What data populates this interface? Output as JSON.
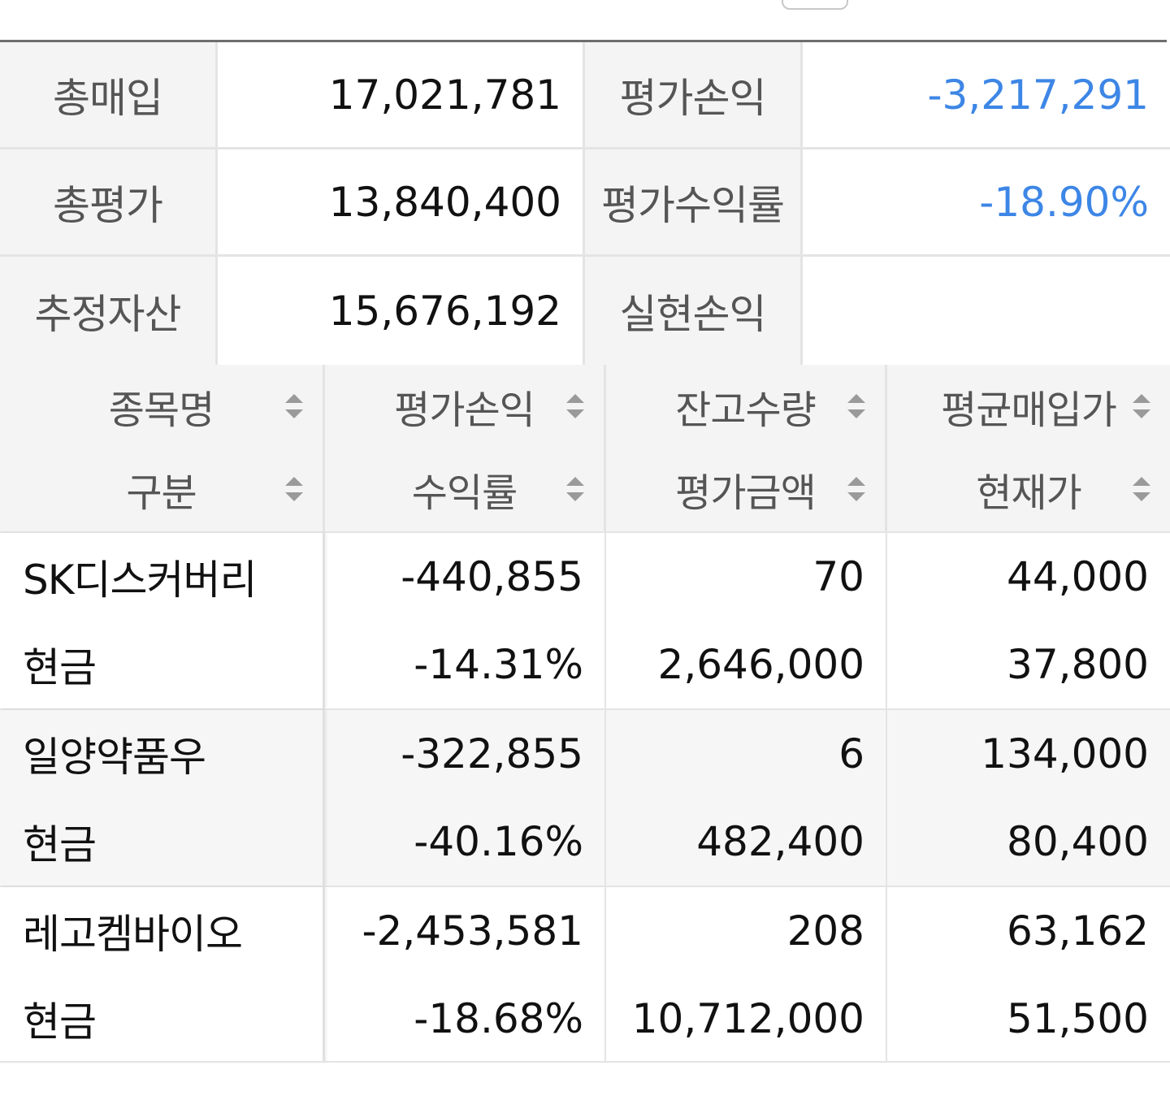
{
  "summary": {
    "rows": [
      {
        "label1": "총매입",
        "value1": "17,021,781",
        "label2": "평가손익",
        "value2": "-3,217,291"
      },
      {
        "label1": "총평가",
        "value1": "13,840,400",
        "label2": "평가수익률",
        "value2": "-18.90%"
      },
      {
        "label1": "추정자산",
        "value1": "15,676,192",
        "label2": "실현손익",
        "value2": ""
      }
    ]
  },
  "table": {
    "headers": [
      {
        "top": "종목명",
        "bottom": "구분"
      },
      {
        "top": "평가손익",
        "bottom": "수익률"
      },
      {
        "top": "잔고수량",
        "bottom": "평가금액"
      },
      {
        "top": "평균매입가",
        "bottom": "현재가"
      }
    ],
    "rows": [
      {
        "name": "SK디스커버리",
        "type": "현금",
        "pl": "-440,855",
        "rate": "-14.31%",
        "qty": "70",
        "eval": "2,646,000",
        "avg": "44,000",
        "price": "37,800"
      },
      {
        "name": "일양약품우",
        "type": "현금",
        "pl": "-322,855",
        "rate": "-40.16%",
        "qty": "6",
        "eval": "482,400",
        "avg": "134,000",
        "price": "80,400"
      },
      {
        "name": "레고켐바이오",
        "type": "현금",
        "pl": "-2,453,581",
        "rate": "-18.68%",
        "qty": "208",
        "eval": "10,712,000",
        "avg": "63,162",
        "price": "51,500"
      }
    ]
  },
  "colors": {
    "loss": "#3d86e6",
    "gain": "#e03232",
    "cash": "#0f9b80"
  },
  "icons": {
    "sort": "sort-updown-icon"
  }
}
